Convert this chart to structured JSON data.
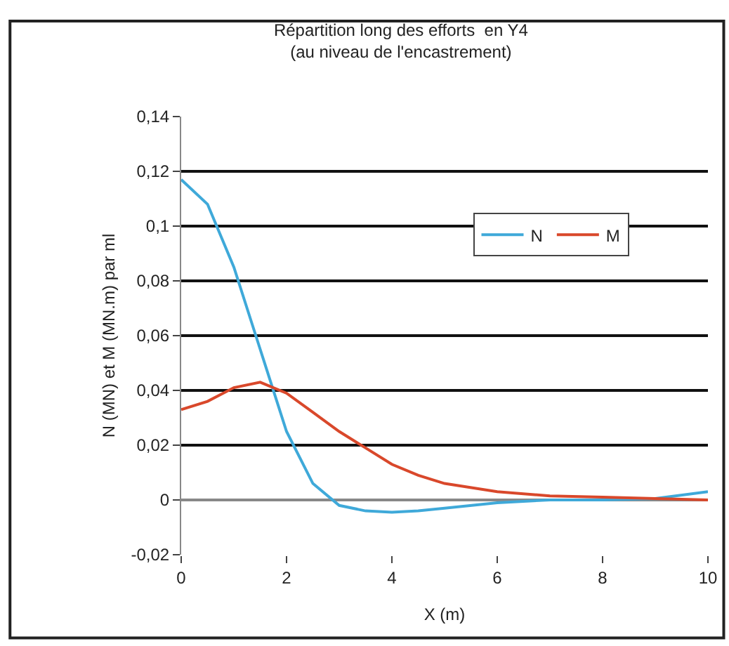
{
  "chart_data": {
    "type": "line",
    "title": "Répartition long des efforts  en Y4\n(au niveau de l'encastrement)",
    "xlabel": "X (m)",
    "ylabel": "N (MN) et M (MN.m) par ml",
    "x": [
      0,
      0.5,
      1,
      1.5,
      2,
      2.5,
      3,
      3.5,
      4,
      4.5,
      5,
      6,
      7,
      8,
      9,
      10
    ],
    "series": [
      {
        "name": "N",
        "color": "#3fa9d9",
        "values": [
          0.117,
          0.108,
          0.085,
          0.055,
          0.025,
          0.006,
          -0.002,
          -0.004,
          -0.0045,
          -0.004,
          -0.003,
          -0.001,
          0,
          0,
          0.0005,
          0.003
        ]
      },
      {
        "name": "M",
        "color": "#d9482b",
        "values": [
          0.033,
          0.036,
          0.041,
          0.043,
          0.039,
          0.032,
          0.025,
          0.019,
          0.013,
          0.009,
          0.006,
          0.003,
          0.0015,
          0.001,
          0.0005,
          0
        ]
      }
    ],
    "xlim": [
      0,
      10
    ],
    "xticks": [
      0,
      2,
      4,
      6,
      8,
      10
    ],
    "ylim": [
      -0.02,
      0.14
    ],
    "yticks": [
      {
        "value": -0.02,
        "label": "-0,02"
      },
      {
        "value": 0,
        "label": "0"
      },
      {
        "value": 0.02,
        "label": "0,02"
      },
      {
        "value": 0.04,
        "label": "0,04"
      },
      {
        "value": 0.06,
        "label": "0,06"
      },
      {
        "value": 0.08,
        "label": "0,08"
      },
      {
        "value": 0.1,
        "label": "0,1"
      },
      {
        "value": 0.12,
        "label": "0,12"
      },
      {
        "value": 0.14,
        "label": "0,14"
      }
    ],
    "grid": "y",
    "legend": "top right",
    "marker": "none",
    "line_style": "solid"
  }
}
